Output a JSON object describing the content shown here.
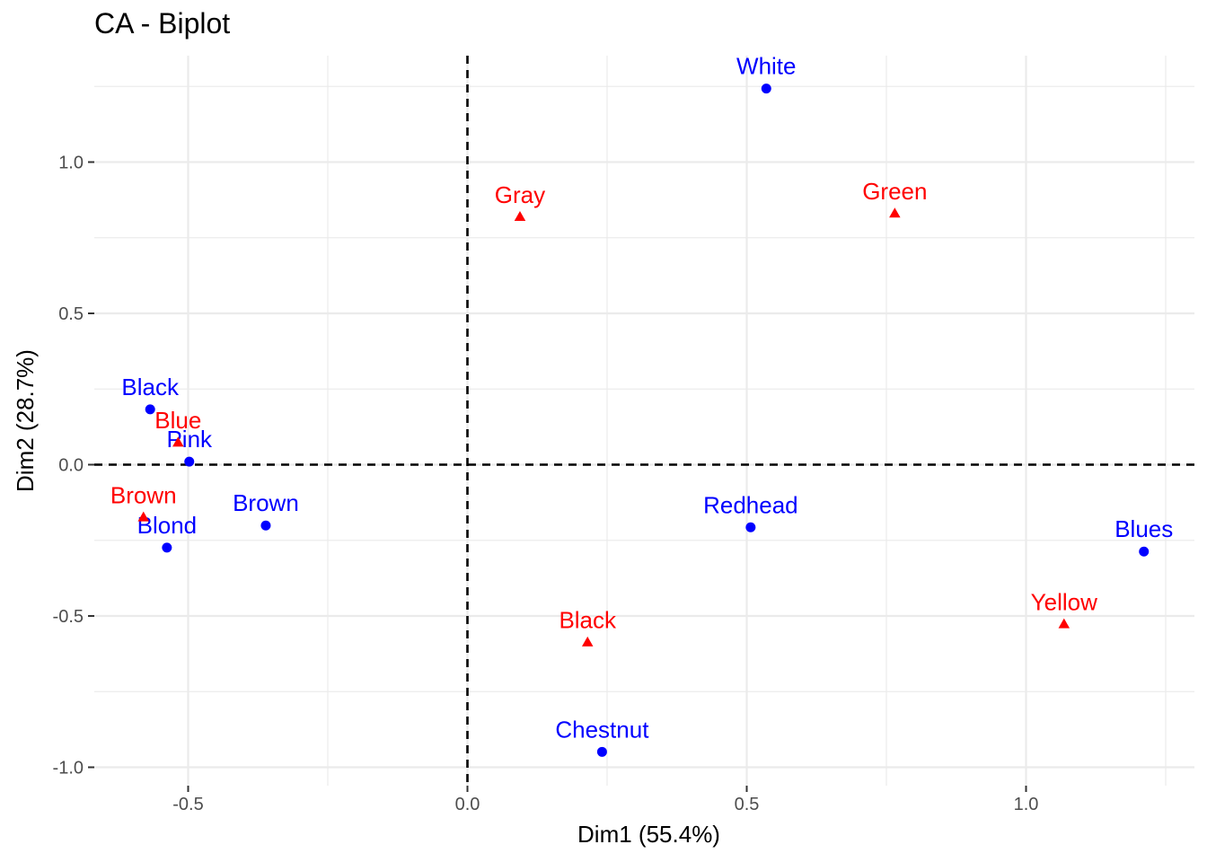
{
  "chart_data": {
    "type": "scatter",
    "title": "CA - Biplot",
    "xlabel": "Dim1 (55.4%)",
    "ylabel": "Dim2 (28.7%)",
    "xlim": [
      -0.66,
      1.3
    ],
    "ylim": [
      -1.06,
      1.35
    ],
    "x_ticks": [
      -0.5,
      0.0,
      0.5,
      1.0
    ],
    "x_tick_labels": [
      "-0.5",
      "0.0",
      "0.5",
      "1.0"
    ],
    "y_ticks": [
      -1.0,
      -0.5,
      0.0,
      0.5,
      1.0
    ],
    "y_tick_labels": [
      "-1.0",
      "-0.5",
      "0.0",
      "0.5",
      "1.0"
    ],
    "grid": true,
    "reference_lines": {
      "x": 0,
      "y": 0,
      "style": "dashed"
    },
    "series": [
      {
        "marker": "circle",
        "color": "#0000FF",
        "points": [
          {
            "label": "White",
            "x": 0.535,
            "y": 1.243
          },
          {
            "label": "Black",
            "x": -0.568,
            "y": 0.183
          },
          {
            "label": "Pink",
            "x": -0.498,
            "y": 0.01
          },
          {
            "label": "Brown",
            "x": -0.361,
            "y": -0.201
          },
          {
            "label": "Blond",
            "x": -0.538,
            "y": -0.274
          },
          {
            "label": "Redhead",
            "x": 0.507,
            "y": -0.207
          },
          {
            "label": "Blues",
            "x": 1.211,
            "y": -0.287
          },
          {
            "label": "Chestnut",
            "x": 0.241,
            "y": -0.949
          }
        ]
      },
      {
        "marker": "triangle",
        "color": "#FF0000",
        "points": [
          {
            "label": "Gray",
            "x": 0.094,
            "y": 0.818
          },
          {
            "label": "Green",
            "x": 0.765,
            "y": 0.829
          },
          {
            "label": "Blue",
            "x": -0.518,
            "y": 0.072
          },
          {
            "label": "Brown",
            "x": -0.58,
            "y": -0.175
          },
          {
            "label": "Black",
            "x": 0.215,
            "y": -0.588
          },
          {
            "label": "Yellow",
            "x": 1.068,
            "y": -0.528
          }
        ]
      }
    ]
  }
}
